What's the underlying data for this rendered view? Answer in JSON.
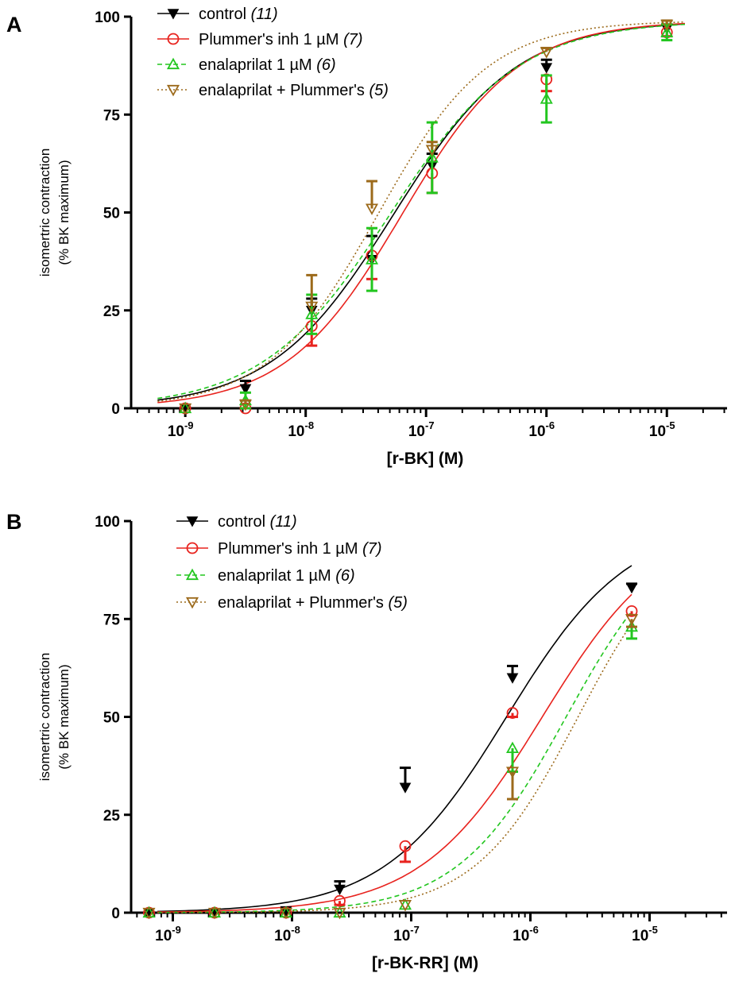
{
  "chart_data": [
    {
      "type": "scatter",
      "panel": "A",
      "xlabel": "[r-BK]  (M)",
      "ylabel": [
        "isomertric contraction",
        "(% BK maximum)"
      ],
      "xscale": "log10",
      "xlim_log": [
        -9.45,
        -4.5
      ],
      "ylim": [
        0,
        100
      ],
      "yticks": [
        0,
        25,
        50,
        75,
        100
      ],
      "xticks": [
        {
          "exp": -9,
          "label": "10",
          "sup": "-9"
        },
        {
          "exp": -8,
          "label": "10",
          "sup": "-8"
        },
        {
          "exp": -7,
          "label": "10",
          "sup": "-7"
        },
        {
          "exp": -6,
          "label": "10",
          "sup": "-6"
        },
        {
          "exp": -5,
          "label": "10",
          "sup": "-5"
        }
      ],
      "legend": "top-left",
      "series": [
        {
          "key": "control",
          "name": "control ",
          "n": "(11)",
          "color": "#000000",
          "marker": "down-filled",
          "line": "solid",
          "err_dir": "up",
          "logx": [
            -9.0,
            -8.5,
            -7.95,
            -7.45,
            -6.95,
            -6.0,
            -5.0
          ],
          "y": [
            0,
            5,
            25,
            38,
            62,
            87,
            97
          ],
          "err": [
            0,
            2,
            3,
            6,
            3,
            2,
            1
          ],
          "fit": {
            "top": 99,
            "bottom": 0,
            "logec50": -7.27,
            "hill": 0.85
          }
        },
        {
          "key": "plummer",
          "name": "Plummer's inh 1 µM ",
          "n": "(7)",
          "color": "#e8231e",
          "marker": "circle-open",
          "line": "solid",
          "err_dir": "down",
          "logx": [
            -9.0,
            -8.5,
            -7.95,
            -7.45,
            -6.95,
            -6.0,
            -5.0
          ],
          "y": [
            0,
            0,
            21,
            39,
            60,
            84,
            96
          ],
          "err": [
            0,
            0,
            5,
            6,
            5,
            3,
            1
          ],
          "fit": {
            "top": 99,
            "bottom": 0,
            "logec50": -7.2,
            "hill": 0.9
          }
        },
        {
          "key": "enalaprilat",
          "name": "enalaprilat 1 µM ",
          "n": "(6)",
          "color": "#22c61f",
          "marker": "up-open",
          "line": "dashed",
          "err_dir": "both",
          "logx": [
            -9.0,
            -8.5,
            -7.95,
            -7.45,
            -6.95,
            -6.0,
            -5.0
          ],
          "y": [
            0,
            2,
            24,
            38,
            64,
            79,
            96
          ],
          "err": [
            0,
            2,
            5,
            8,
            9,
            6,
            2
          ],
          "fit": {
            "top": 99,
            "bottom": 0,
            "logec50": -7.3,
            "hill": 0.82
          }
        },
        {
          "key": "enal_plummer",
          "name": "enalaprilat + Plummer's ",
          "n": "(5)",
          "color": "#9c6a1b",
          "marker": "down-open",
          "line": "dotted",
          "err_dir": "up",
          "logx": [
            -9.0,
            -8.5,
            -7.95,
            -7.45,
            -6.95,
            -6.0,
            -5.0
          ],
          "y": [
            0,
            1,
            26,
            51,
            66,
            91,
            98
          ],
          "err": [
            0,
            1,
            8,
            7,
            2,
            1,
            1
          ],
          "fit": {
            "top": 99,
            "bottom": 0,
            "logec50": -7.4,
            "hill": 0.95
          }
        }
      ]
    },
    {
      "type": "scatter",
      "panel": "B",
      "xlabel": "[r-BK-RR]  (M)",
      "ylabel": [
        "isomertric contraction",
        "(% BK maximum)"
      ],
      "xscale": "log10",
      "xlim_log": [
        -9.35,
        -4.35
      ],
      "ylim": [
        0,
        100
      ],
      "yticks": [
        0,
        25,
        50,
        75,
        100
      ],
      "xticks": [
        {
          "exp": -9,
          "label": "10",
          "sup": "-9"
        },
        {
          "exp": -8,
          "label": "10",
          "sup": "-8"
        },
        {
          "exp": -7,
          "label": "10",
          "sup": "-7"
        },
        {
          "exp": -6,
          "label": "10",
          "sup": "-6"
        },
        {
          "exp": -5,
          "label": "10",
          "sup": "-5"
        }
      ],
      "legend": "top-left",
      "series": [
        {
          "key": "control",
          "name": "control ",
          "n": "(11)",
          "color": "#000000",
          "marker": "down-filled",
          "line": "solid",
          "err_dir": "up",
          "logx": [
            -9.2,
            -8.65,
            -8.05,
            -7.6,
            -7.05,
            -6.15,
            -5.15
          ],
          "y": [
            0,
            0,
            0.5,
            6,
            32,
            60,
            83
          ],
          "err": [
            0,
            0,
            0.5,
            2,
            5,
            3,
            1
          ],
          "fit": {
            "top": 100,
            "bottom": 0,
            "logec50": -6.2,
            "hill": 0.85,
            "xmax_log": -5.15
          }
        },
        {
          "key": "plummer",
          "name": "Plummer's inh 1 µM ",
          "n": "(7)",
          "color": "#e8231e",
          "marker": "circle-open",
          "line": "solid",
          "err_dir": "down",
          "logx": [
            -9.2,
            -8.65,
            -8.05,
            -7.6,
            -7.05,
            -6.15,
            -5.15
          ],
          "y": [
            0,
            0,
            0,
            3,
            17,
            51,
            77
          ],
          "err": [
            0,
            0,
            0,
            1,
            4,
            1,
            1
          ],
          "fit": {
            "top": 100,
            "bottom": 0,
            "logec50": -5.9,
            "hill": 0.85,
            "xmax_log": -5.15
          }
        },
        {
          "key": "enalaprilat",
          "name": "enalaprilat 1 µM ",
          "n": "(6)",
          "color": "#22c61f",
          "marker": "up-open",
          "line": "dashed",
          "err_dir": "down",
          "logx": [
            -9.2,
            -8.65,
            -8.05,
            -7.6,
            -7.05,
            -6.15,
            -5.15
          ],
          "y": [
            0,
            0,
            0,
            0,
            2,
            42,
            73
          ],
          "err": [
            0,
            0,
            0,
            0,
            0,
            6,
            3
          ],
          "fit": {
            "top": 100,
            "bottom": 0,
            "logec50": -5.7,
            "hill": 0.95,
            "xmax_log": -5.15
          }
        },
        {
          "key": "enal_plummer",
          "name": "enalaprilat + Plummer's ",
          "n": "(5)",
          "color": "#9c6a1b",
          "marker": "down-open",
          "line": "dotted",
          "err_dir": "down",
          "logx": [
            -9.2,
            -8.65,
            -8.05,
            -7.6,
            -7.05,
            -6.15,
            -5.15
          ],
          "y": [
            0,
            0,
            0,
            0,
            2,
            36,
            75
          ],
          "err": [
            0,
            0,
            0,
            0,
            0,
            7,
            2
          ],
          "fit": {
            "top": 100,
            "bottom": 0,
            "logec50": -5.6,
            "hill": 1.0,
            "xmax_log": -5.15
          }
        }
      ]
    }
  ]
}
